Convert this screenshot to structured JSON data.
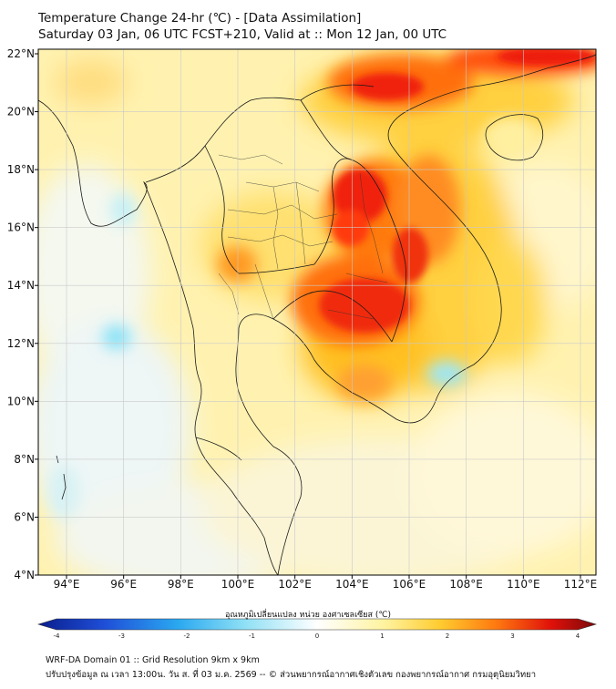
{
  "title_line1": "Temperature Change 24-hr (℃) - [Data Assimilation]",
  "title_line2": "Saturday 03 Jan, 06 UTC FCST+210, Valid at :: Mon 12 Jan, 00 UTC",
  "lat_labels": [
    "22°N",
    "20°N",
    "18°N",
    "16°N",
    "14°N",
    "12°N",
    "10°N",
    "8°N",
    "6°N",
    "4°N"
  ],
  "lon_labels": [
    "94°E",
    "96°E",
    "98°E",
    "100°E",
    "102°E",
    "104°E",
    "106°E",
    "108°E",
    "110°E",
    "112°E"
  ],
  "colorbar": {
    "label": "อุณหภูมิเปลี่ยนแปลง หน่วย องศาเซลเซียส (℃)",
    "ticks": [
      "-4",
      "-3",
      "-2",
      "-1",
      "0",
      "1",
      "2",
      "3",
      "4"
    ],
    "min": -4,
    "max": 4
  },
  "footer_line1": "WRF-DA Domain 01 :: Grid Resolution 9km x 9km",
  "footer_line2": "ปรับปรุงข้อมูล ณ เวลา 13:00น. วัน ส. ที่ 03 ม.ค. 2569 -- © ส่วนพยากรณ์อากาศเชิงตัวเลข กองพยากรณ์อากาศ กรมอุตุนิยมวิทยา"
}
